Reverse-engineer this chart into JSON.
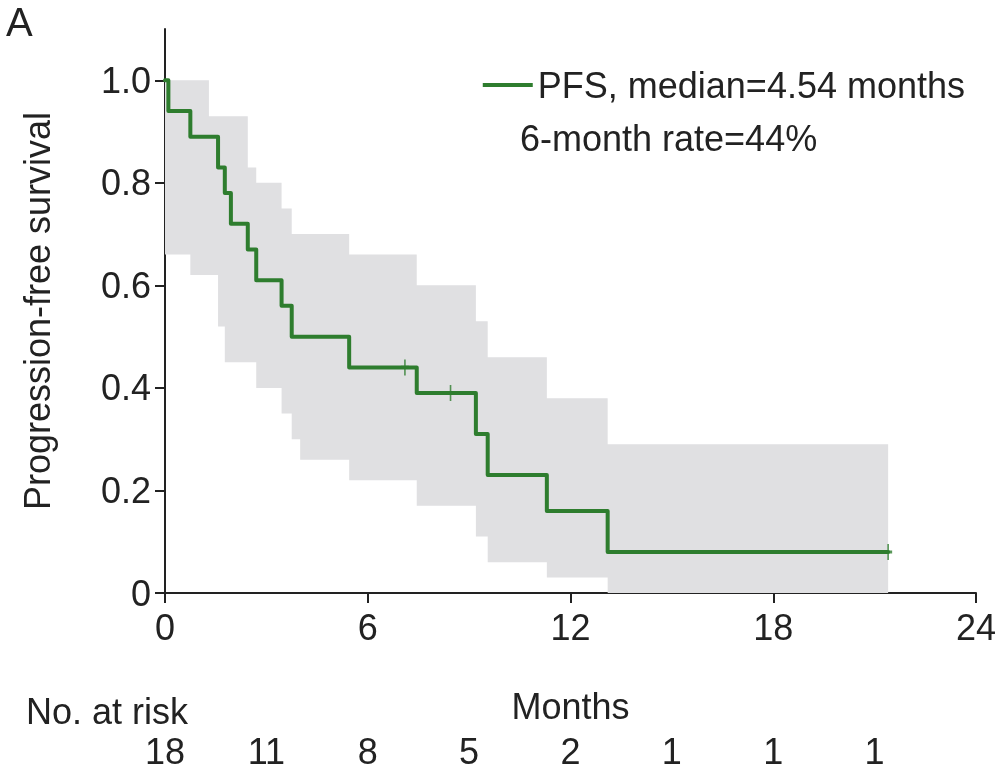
{
  "chart_data": {
    "type": "step",
    "xlabel": "Months",
    "ylabel": "Progression-free survival",
    "xlim": [
      0,
      24
    ],
    "xticks": [
      0,
      6,
      12,
      18,
      24
    ],
    "ylim": [
      0,
      1.1
    ],
    "yticks": [
      {
        "value": 0,
        "label": "0"
      },
      {
        "value": 0.2,
        "label": "0.2"
      },
      {
        "value": 0.4,
        "label": "0.4"
      },
      {
        "value": 0.6,
        "label": "0.6"
      },
      {
        "value": 0.8,
        "label": "0.8"
      },
      {
        "value": 1,
        "label": "1.0"
      }
    ],
    "grid": false,
    "legend": "top right",
    "series": [
      {
        "name": "PFS, median=4.54 months",
        "color": "#2e7d2e",
        "x": [
          0,
          0.1,
          0.75,
          1.3,
          1.57,
          1.77,
          1.95,
          2.45,
          2.7,
          3.45,
          3.75,
          4.0,
          5.45,
          7.45,
          9.2,
          9.55,
          11.3,
          13.1,
          21.4
        ],
        "values": [
          1.0,
          0.94,
          0.89,
          0.89,
          0.83,
          0.78,
          0.72,
          0.67,
          0.61,
          0.56,
          0.5,
          0.5,
          0.44,
          0.39,
          0.31,
          0.23,
          0.16,
          0.08,
          0.08
        ],
        "upper": [
          1.0,
          1.0,
          1.0,
          0.93,
          0.93,
          0.93,
          0.93,
          0.83,
          0.8,
          0.75,
          0.7,
          0.7,
          0.66,
          0.6,
          0.53,
          0.46,
          0.38,
          0.29,
          0.29
        ],
        "lower": [
          0.66,
          0.66,
          0.62,
          0.62,
          0.52,
          0.45,
          0.45,
          0.45,
          0.4,
          0.35,
          0.3,
          0.26,
          0.22,
          0.17,
          0.11,
          0.06,
          0.03,
          0,
          0
        ]
      },
      {
        "type": "scatter",
        "color": "#2e7d2e",
        "x": [
          7.1,
          8.45,
          21.4
        ],
        "values": [
          0.44,
          0.39,
          0.08
        ]
      }
    ],
    "annotations": [
      "6-month rate=44%",
      "A",
      "No. at risk",
      "18",
      "11",
      "8",
      "5",
      "2",
      "1",
      "1",
      "1"
    ]
  }
}
